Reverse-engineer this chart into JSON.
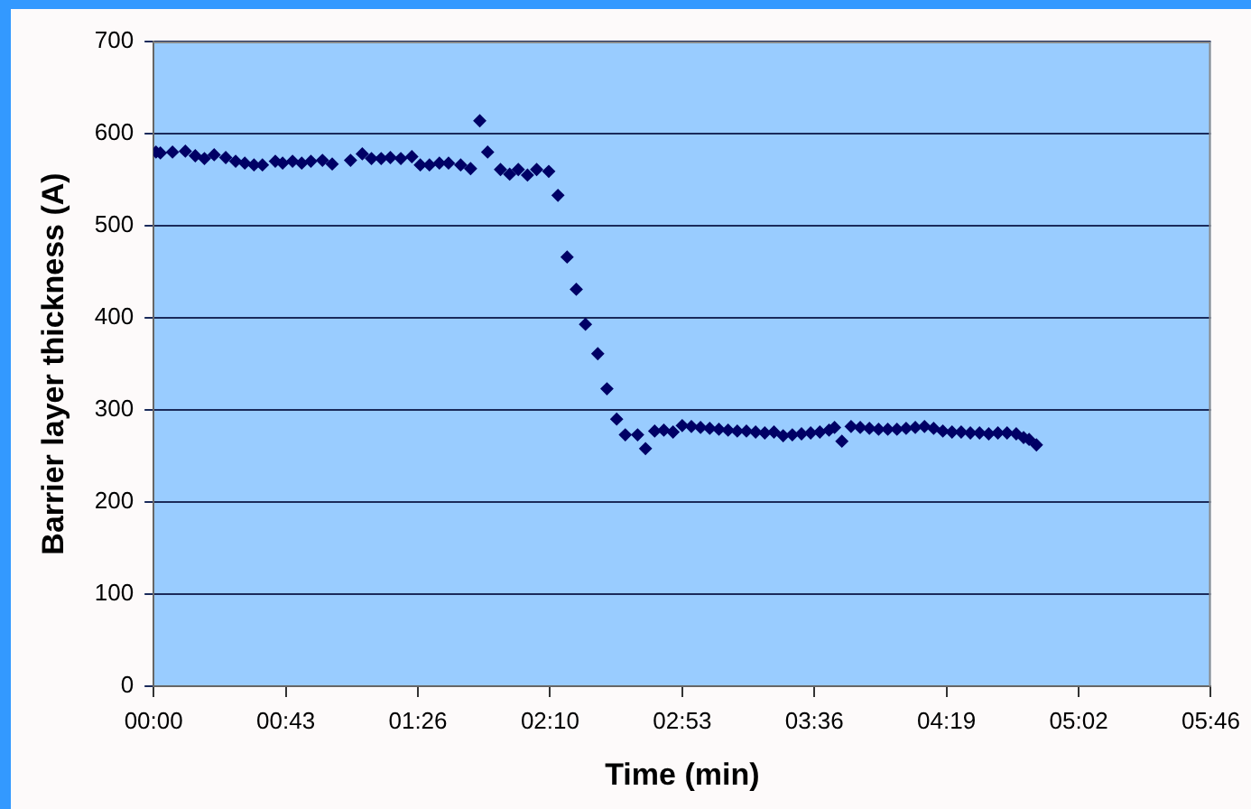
{
  "chart_data": {
    "type": "scatter",
    "xlabel": "Time (min)",
    "ylabel": "Barrier layer thickness (A)",
    "xlim": [
      0,
      5.76
    ],
    "ylim": [
      0,
      700
    ],
    "xticks": [
      {
        "value": 0,
        "label": "00:00"
      },
      {
        "value": 0.72,
        "label": "00:43"
      },
      {
        "value": 1.44,
        "label": "01:26"
      },
      {
        "value": 2.16,
        "label": "02:10"
      },
      {
        "value": 2.88,
        "label": "02:53"
      },
      {
        "value": 3.6,
        "label": "03:36"
      },
      {
        "value": 4.32,
        "label": "04:19"
      },
      {
        "value": 5.04,
        "label": "05:02"
      },
      {
        "value": 5.76,
        "label": "05:46"
      }
    ],
    "yticks": [
      0,
      100,
      200,
      300,
      400,
      500,
      600,
      700
    ],
    "grid": "y",
    "legend": false,
    "marker": "diamond",
    "series": [
      {
        "color": "#000066",
        "x": [
          0.013,
          0.037,
          0.103,
          0.173,
          0.227,
          0.277,
          0.33,
          0.393,
          0.447,
          0.497,
          0.547,
          0.593,
          0.663,
          0.703,
          0.757,
          0.807,
          0.857,
          0.92,
          0.973,
          1.073,
          1.137,
          1.187,
          1.24,
          1.29,
          1.347,
          1.407,
          1.453,
          1.503,
          1.557,
          1.607,
          1.673,
          1.727,
          1.777,
          1.82,
          1.89,
          1.94,
          1.987,
          2.037,
          2.087,
          2.153,
          2.203,
          2.253,
          2.303,
          2.353,
          2.42,
          2.47,
          2.523,
          2.57,
          2.637,
          2.68,
          2.73,
          2.78,
          2.83,
          2.88,
          2.93,
          2.98,
          3.03,
          3.08,
          3.13,
          3.18,
          3.23,
          3.28,
          3.33,
          3.38,
          3.43,
          3.48,
          3.53,
          3.58,
          3.63,
          3.68,
          3.71,
          3.75,
          3.8,
          3.85,
          3.9,
          3.95,
          4.0,
          4.05,
          4.1,
          4.15,
          4.2,
          4.25,
          4.3,
          4.35,
          4.4,
          4.45,
          4.5,
          4.55,
          4.6,
          4.65,
          4.7,
          4.74,
          4.77,
          4.81
        ],
        "values": [
          580,
          579,
          580,
          581,
          576,
          573,
          577,
          574,
          570,
          568,
          566,
          566,
          570,
          568,
          570,
          568,
          570,
          571,
          567,
          571,
          578,
          573,
          573,
          574,
          573,
          575,
          566,
          566,
          568,
          568,
          566,
          562,
          614,
          580,
          561,
          556,
          561,
          555,
          561,
          559,
          533,
          466,
          431,
          393,
          361,
          323,
          290,
          273,
          273,
          258,
          277,
          278,
          276,
          283,
          282,
          281,
          280,
          279,
          278,
          277,
          277,
          276,
          275,
          276,
          272,
          273,
          274,
          275,
          276,
          278,
          281,
          266,
          282,
          281,
          280,
          279,
          279,
          279,
          280,
          281,
          282,
          280,
          277,
          276,
          276,
          275,
          275,
          274,
          275,
          275,
          274,
          270,
          268,
          262
        ]
      }
    ]
  }
}
